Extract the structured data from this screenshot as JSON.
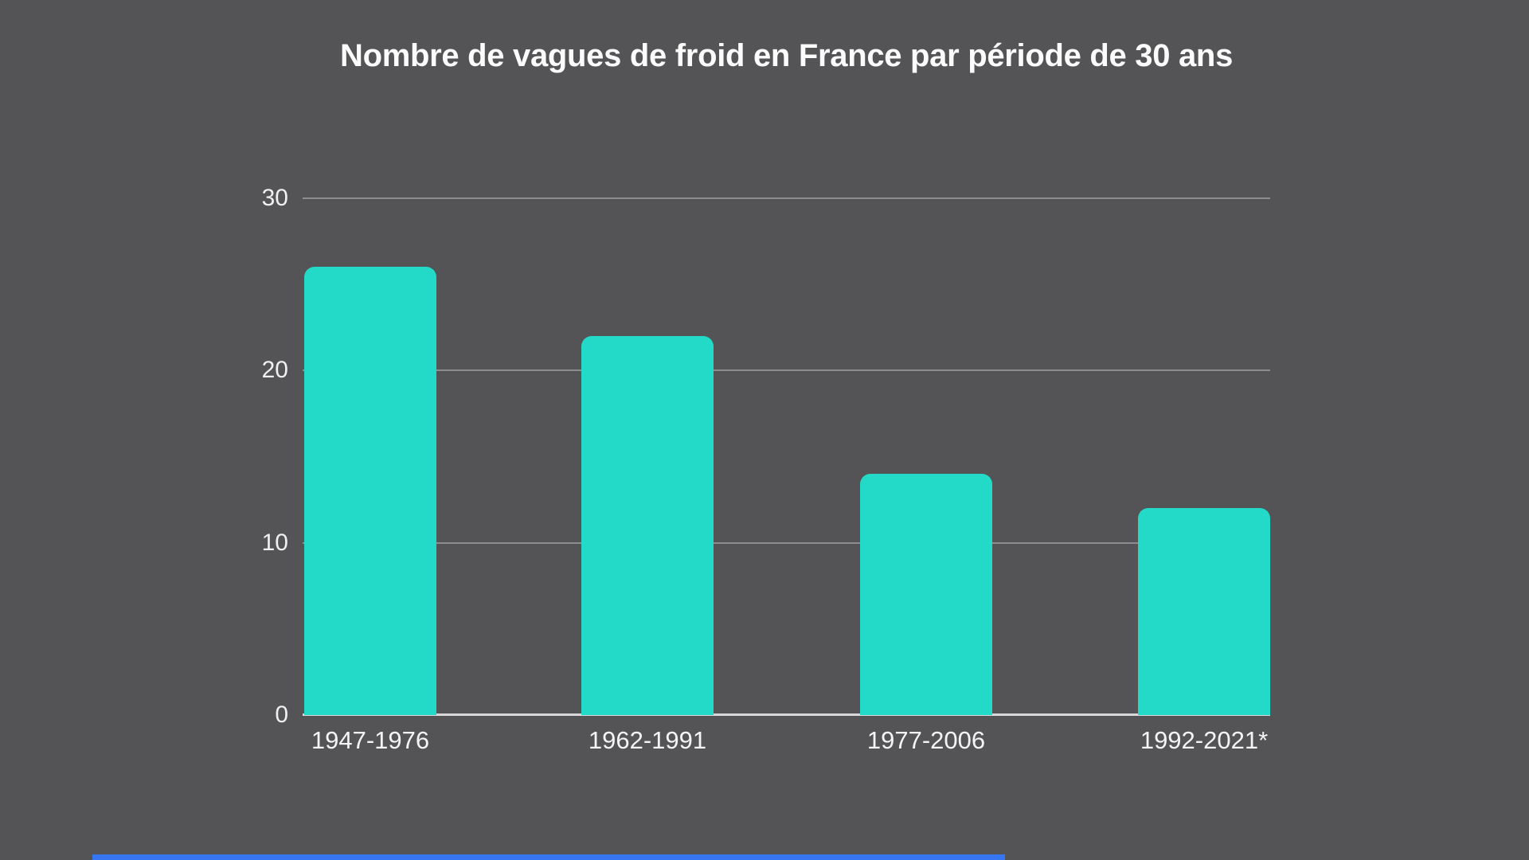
{
  "page": {
    "background_color": "#545456"
  },
  "chart_data": {
    "type": "bar",
    "title": "Nombre de vagues de froid en France par période de 30 ans",
    "categories": [
      "1947-1976",
      "1962-1991",
      "1977-2006",
      "1992-2021*"
    ],
    "values": [
      26,
      22,
      14,
      12
    ],
    "xlabel": "",
    "ylabel": "",
    "y_ticks": [
      0,
      10,
      20,
      30
    ],
    "ylim": [
      0,
      32
    ],
    "grid": true,
    "legend_position": "none",
    "bar_color": "#23dac8",
    "grid_color": "#8d8d8d",
    "axis_color": "#d9d9d9",
    "text_color": "#f0f0f0",
    "title_color": "#fbfbfb"
  },
  "player": {
    "progress_color": "#3776f3"
  }
}
